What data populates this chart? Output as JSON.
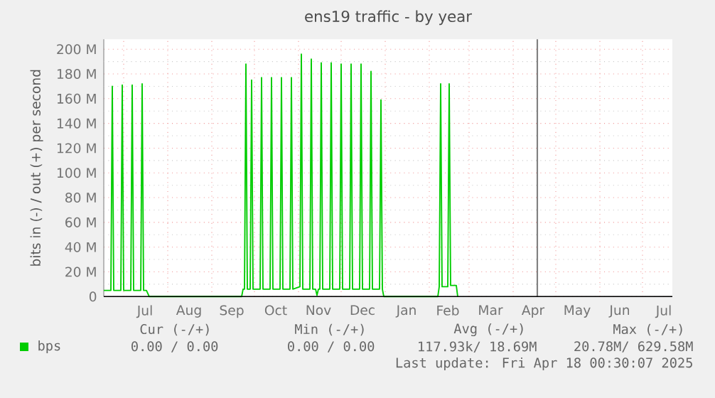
{
  "chart_data": {
    "type": "line",
    "title": "ens19 traffic - by year",
    "ylabel": "bits in (-) / out (+) per second",
    "xlim": [
      "2024-06-17",
      "2025-07-22"
    ],
    "ylim": [
      0,
      208
    ],
    "xticks": [
      {
        "value": "2024-07-01",
        "label": null
      },
      {
        "value": "2024-08-01",
        "label": null
      },
      {
        "value": "2024-09-01",
        "label": null
      },
      {
        "value": "2024-10-01",
        "label": null
      },
      {
        "value": "2024-11-01",
        "label": null
      },
      {
        "value": "2024-12-01",
        "label": null
      },
      {
        "value": "2025-01-01",
        "label": null
      },
      {
        "value": "2025-02-01",
        "label": null
      },
      {
        "value": "2025-03-01",
        "label": null
      },
      {
        "value": "2025-04-01",
        "label": null
      },
      {
        "value": "2025-05-01",
        "label": null
      },
      {
        "value": "2025-06-01",
        "label": null
      },
      {
        "value": "2025-07-01",
        "label": null
      },
      {
        "value": "2024-07-16",
        "label": "Jul"
      },
      {
        "value": "2024-08-16",
        "label": "Aug"
      },
      {
        "value": "2024-09-15",
        "label": "Sep"
      },
      {
        "value": "2024-10-16",
        "label": "Oct"
      },
      {
        "value": "2024-11-15",
        "label": "Nov"
      },
      {
        "value": "2024-12-16",
        "label": "Dec"
      },
      {
        "value": "2025-01-16",
        "label": "Jan"
      },
      {
        "value": "2025-02-14",
        "label": "Feb"
      },
      {
        "value": "2025-03-16",
        "label": "Mar"
      },
      {
        "value": "2025-04-15",
        "label": "Apr"
      },
      {
        "value": "2025-05-16",
        "label": "May"
      },
      {
        "value": "2025-06-15",
        "label": "Jun"
      },
      {
        "value": "2025-07-16",
        "label": "Jul"
      }
    ],
    "yticks": [
      0,
      {
        "value": 10,
        "label": null
      },
      {
        "value": 20,
        "label": "20 M"
      },
      {
        "value": 30,
        "label": null
      },
      {
        "value": 40,
        "label": "40 M"
      },
      {
        "value": 50,
        "label": null
      },
      {
        "value": 60,
        "label": "60 M"
      },
      {
        "value": 70,
        "label": null
      },
      {
        "value": 80,
        "label": "80 M"
      },
      {
        "value": 90,
        "label": null
      },
      {
        "value": 100,
        "label": "100 M"
      },
      {
        "value": 110,
        "label": null
      },
      {
        "value": 120,
        "label": "120 M"
      },
      {
        "value": 130,
        "label": null
      },
      {
        "value": 140,
        "label": "140 M"
      },
      {
        "value": 150,
        "label": null
      },
      {
        "value": 160,
        "label": "160 M"
      },
      {
        "value": 170,
        "label": null
      },
      {
        "value": 180,
        "label": "180 M"
      },
      {
        "value": 190,
        "label": null
      },
      {
        "value": 200,
        "label": "200 M"
      }
    ],
    "grid": true,
    "legend": "bottom left",
    "marker": "none",
    "line_style": "solid",
    "ref_lines": [
      {
        "axis": "x",
        "value": "2025-04-18",
        "color": "#808080"
      }
    ],
    "annotations": [
      "Cur (-/+)",
      "Min (-/+)",
      "Avg (-/+)",
      "Max (-/+)",
      "0.00 /   0.00",
      "0.00 /   0.00",
      "117.93k/  18.69M",
      "20.78M/ 629.58M",
      "Last update: Fri Apr 18 00:30:07 2025"
    ],
    "series": [
      {
        "name": "bps",
        "color": "#00cc00",
        "x": [
          "2024-06-17",
          "2024-06-22",
          "2024-06-23",
          "2024-06-24",
          "2024-06-29",
          "2024-06-30",
          "2024-07-01",
          "2024-07-06",
          "2024-07-07",
          "2024-07-08",
          "2024-07-13",
          "2024-07-14",
          "2024-07-15",
          "2024-07-17",
          "2024-07-19",
          "2024-09-22",
          "2024-09-23",
          "2024-09-24",
          "2024-09-25",
          "2024-09-26",
          "2024-09-28",
          "2024-09-29",
          "2024-09-30",
          "2024-10-05",
          "2024-10-06",
          "2024-10-07",
          "2024-10-12",
          "2024-10-13",
          "2024-10-14",
          "2024-10-19",
          "2024-10-20",
          "2024-10-21",
          "2024-10-26",
          "2024-10-27",
          "2024-10-28",
          "2024-11-02",
          "2024-11-03",
          "2024-11-04",
          "2024-11-09",
          "2024-11-10",
          "2024-11-11",
          "2024-11-13",
          "2024-11-14",
          "2024-11-15",
          "2024-11-16",
          "2024-11-17",
          "2024-11-18",
          "2024-11-23",
          "2024-11-24",
          "2024-11-25",
          "2024-11-30",
          "2024-12-01",
          "2024-12-02",
          "2024-12-07",
          "2024-12-08",
          "2024-12-09",
          "2024-12-14",
          "2024-12-15",
          "2024-12-16",
          "2024-12-21",
          "2024-12-22",
          "2024-12-23",
          "2024-12-28",
          "2024-12-29",
          "2024-12-30",
          "2024-12-31",
          "2025-02-07",
          "2025-02-08",
          "2025-02-09",
          "2025-02-10",
          "2025-02-14",
          "2025-02-15",
          "2025-02-16",
          "2025-02-20",
          "2025-02-21"
        ],
        "values": [
          5,
          5,
          170,
          5,
          5,
          171,
          5,
          5,
          171,
          5,
          5,
          172,
          5,
          5,
          0,
          0,
          6,
          6,
          188,
          6,
          6,
          175,
          6,
          6,
          177,
          6,
          6,
          177,
          6,
          6,
          177,
          6,
          6,
          177,
          6,
          8,
          196,
          6,
          6,
          192,
          6,
          6,
          1,
          6,
          6,
          189,
          6,
          6,
          189,
          6,
          6,
          188,
          6,
          6,
          188,
          6,
          6,
          188,
          6,
          6,
          182,
          6,
          6,
          159,
          6,
          0,
          0,
          8,
          172,
          8,
          8,
          172,
          9,
          9,
          0
        ]
      }
    ]
  }
}
